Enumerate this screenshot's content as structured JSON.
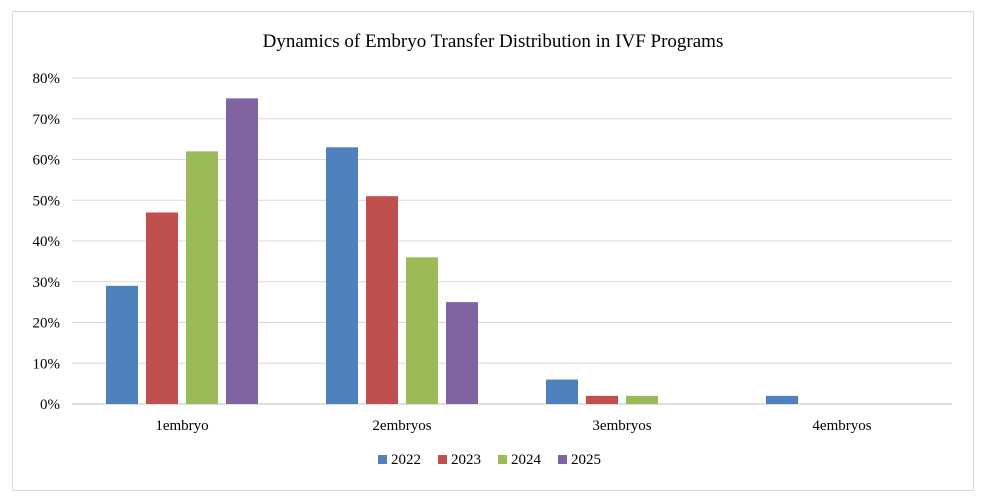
{
  "chart_data": {
    "type": "bar",
    "title": "Dynamics  of Embryo  Transfer  Distribution  in IVF  Programs",
    "xlabel": "",
    "ylabel": "",
    "categories": [
      "1embryo",
      "2embryos",
      "3embryos",
      "4embryos"
    ],
    "series": [
      {
        "name": "2022",
        "color": "#4f81bd",
        "values": [
          29,
          63,
          6,
          2
        ]
      },
      {
        "name": "2023",
        "color": "#c0504d",
        "values": [
          47,
          51,
          2,
          0
        ]
      },
      {
        "name": "2024",
        "color": "#9bbb59",
        "values": [
          62,
          36,
          2,
          0
        ]
      },
      {
        "name": "2025",
        "color": "#8064a2",
        "values": [
          75,
          25,
          0,
          0
        ]
      }
    ],
    "ylim": [
      0,
      80
    ],
    "yticks": [
      0,
      10,
      20,
      30,
      40,
      50,
      60,
      70,
      80
    ],
    "ytick_labels": [
      "0%",
      "10%",
      "20%",
      "30%",
      "40%",
      "50%",
      "60%",
      "70%",
      "80%"
    ],
    "grid": true,
    "gridline_color": "#d9d9d9",
    "legend_position": "bottom"
  }
}
